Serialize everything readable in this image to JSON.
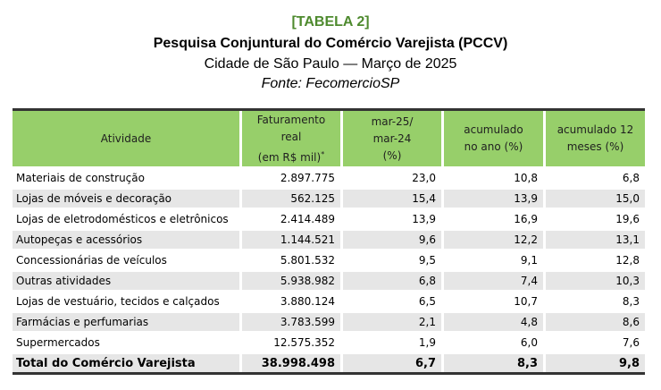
{
  "header": {
    "tag": "[TABELA 2]",
    "title": "Pesquisa Conjuntural do Comércio Varejista (PCCV)",
    "subtitle": "Cidade de São Paulo — Março de 2025",
    "source": "Fonte: FecomercioSP"
  },
  "table": {
    "columns": {
      "atividade": "Atividade",
      "faturamento_l1": "Faturamento real",
      "faturamento_l2": "(em R$ mil)",
      "faturamento_mark": "*",
      "var_l1": "mar-25/",
      "var_l2": "mar-24",
      "var_l3": "(%)",
      "acum_l1": "acumulado",
      "acum_l2": "no ano (%)",
      "acum12_l1": "acumulado 12",
      "acum12_l2": "meses (%)"
    },
    "rows": [
      {
        "atividade": "Materiais de construção",
        "faturamento": "2.897.775",
        "var": "23,0",
        "acum": "10,8",
        "acum12": "6,8"
      },
      {
        "atividade": "Lojas de móveis e decoração",
        "faturamento": "562.125",
        "var": "15,4",
        "acum": "13,9",
        "acum12": "15,0"
      },
      {
        "atividade": "Lojas de eletrodomésticos e eletrônicos",
        "faturamento": "2.414.489",
        "var": "13,9",
        "acum": "16,9",
        "acum12": "19,6"
      },
      {
        "atividade": "Autopeças e acessórios",
        "faturamento": "1.144.521",
        "var": "9,6",
        "acum": "12,2",
        "acum12": "13,1"
      },
      {
        "atividade": "Concessionárias de veículos",
        "faturamento": "5.801.532",
        "var": "9,5",
        "acum": "9,1",
        "acum12": "12,8"
      },
      {
        "atividade": "Outras atividades",
        "faturamento": "5.938.982",
        "var": "6,8",
        "acum": "7,4",
        "acum12": "10,3"
      },
      {
        "atividade": "Lojas de vestuário, tecidos e calçados",
        "faturamento": "3.880.124",
        "var": "6,5",
        "acum": "10,7",
        "acum12": "8,3"
      },
      {
        "atividade": "Farmácias e perfumarias",
        "faturamento": "3.783.599",
        "var": "2,1",
        "acum": "4,8",
        "acum12": "8,6"
      },
      {
        "atividade": "Supermercados",
        "faturamento": "12.575.352",
        "var": "1,9",
        "acum": "6,0",
        "acum12": "7,6"
      }
    ],
    "total": {
      "atividade": "Total do Comércio Varejista",
      "faturamento": "38.998.498",
      "var": "6,7",
      "acum": "8,3",
      "acum12": "9,8"
    }
  }
}
